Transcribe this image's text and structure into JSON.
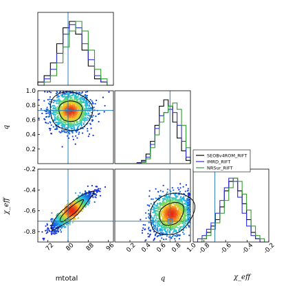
{
  "chart_data": {
    "type": "corner-plot",
    "parameters": [
      {
        "key": "mtotal",
        "label": "mtotal",
        "range": [
          68,
          98
        ],
        "ticks": [
          "72",
          "80",
          "88",
          "96"
        ],
        "truth": 80
      },
      {
        "key": "q",
        "label": "q",
        "range": [
          0,
          1.0
        ],
        "ticks": [
          "0.2",
          "0.4",
          "0.6",
          "0.8",
          "1.0"
        ],
        "truth": 0.73
      },
      {
        "key": "chi_eff",
        "label": "χ_eff",
        "range": [
          -0.9,
          -0.2
        ],
        "ticks": [
          "-0.8",
          "-0.6",
          "-0.4",
          "-0.2"
        ],
        "truth": -0.7
      }
    ],
    "series": [
      {
        "name": "SEOBv4ROM_RIFT",
        "color": "#000000",
        "mtotal_hist": [
          1,
          3,
          7,
          13,
          18,
          20,
          16,
          11,
          6,
          2,
          1,
          0
        ],
        "q_hist": [
          0,
          0,
          0,
          0,
          0,
          0.3,
          1,
          3,
          7,
          12,
          18,
          20,
          18,
          13,
          8,
          4,
          1
        ],
        "chi_hist": [
          0,
          0,
          1,
          3,
          5,
          7,
          11,
          16,
          19,
          20,
          16,
          12,
          7,
          3,
          1,
          0,
          0
        ]
      },
      {
        "name": "IMRD_RIFT",
        "color": "#2c2cd6",
        "mtotal_hist": [
          0,
          2,
          5,
          10,
          16,
          19,
          18,
          13,
          8,
          3,
          1,
          0
        ],
        "q_hist": [
          0,
          0,
          0,
          0,
          0,
          0.2,
          0.6,
          2,
          6,
          11,
          15,
          16,
          17,
          16,
          12,
          7,
          2
        ],
        "chi_hist": [
          0,
          1,
          2,
          4,
          6,
          9,
          13,
          17,
          20,
          19,
          14,
          9,
          5,
          2,
          1,
          0,
          0
        ]
      },
      {
        "name": "NRSur_RIFT",
        "color": "#2e9a2e",
        "mtotal_hist": [
          0,
          1,
          3,
          7,
          12,
          17,
          20,
          17,
          11,
          5,
          2,
          0
        ],
        "q_hist": [
          0,
          0,
          0,
          0,
          0,
          0.1,
          0.4,
          1.5,
          5,
          9,
          13,
          16,
          18,
          19,
          17,
          12,
          5
        ],
        "chi_hist": [
          0,
          0,
          1,
          2,
          4,
          6,
          9,
          13,
          17,
          20,
          19,
          15,
          10,
          5,
          2,
          1,
          0
        ]
      }
    ],
    "scatter": [
      {
        "x": "mtotal",
        "y": "q",
        "center": [
          81,
          0.72
        ],
        "spread": [
          4,
          0.13
        ],
        "corr": 0
      },
      {
        "x": "mtotal",
        "y": "chi_eff",
        "center": [
          81.5,
          -0.6
        ],
        "spread": [
          4,
          0.09
        ],
        "corr": 0.9
      },
      {
        "x": "q",
        "y": "chi_eff",
        "center": [
          0.75,
          -0.63
        ],
        "spread": [
          0.14,
          0.1
        ],
        "corr": 0.25
      }
    ],
    "legend_position": "right"
  }
}
